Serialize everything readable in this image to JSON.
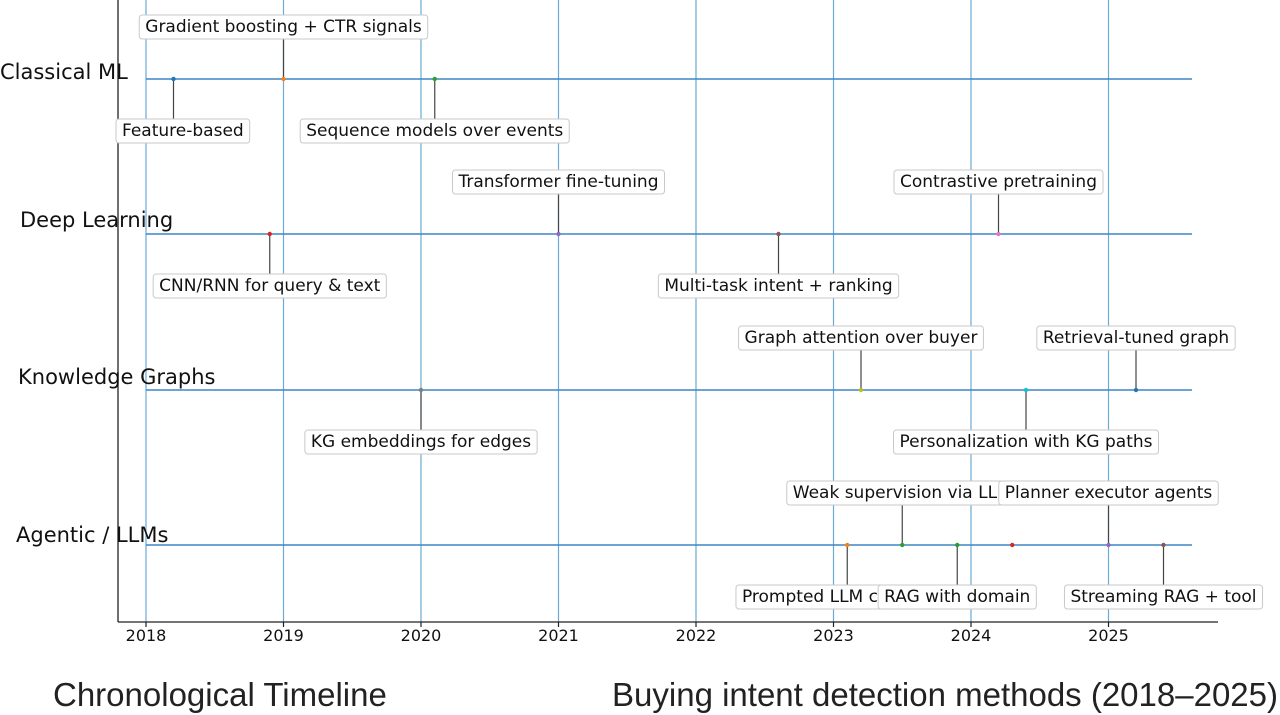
{
  "chart_data": {
    "type": "timeline",
    "x_range": [
      2017.8,
      2025.8
    ],
    "x_ticks": [
      2018,
      2019,
      2020,
      2021,
      2022,
      2023,
      2024,
      2025
    ],
    "x_tick_labels": [
      "2018",
      "2019",
      "2020",
      "2021",
      "2022",
      "2023",
      "2024",
      "2025"
    ],
    "lanes": [
      "Classical ML",
      "Deep Learning",
      "Knowledge Graphs",
      "Agentic / LLMs"
    ],
    "grid": true,
    "colors": {
      "grid": "#6aaad6",
      "lane_line": "#3d86c6",
      "axis": "#222222",
      "connector": "#444444"
    },
    "events": [
      {
        "lane": 0,
        "x": 2018.2,
        "label": "Feature-based",
        "side": "below",
        "marker_color": "#1f77b4"
      },
      {
        "lane": 0,
        "x": 2019.0,
        "label": "Gradient boosting + CTR signals",
        "side": "above",
        "marker_color": "#ff7f0e"
      },
      {
        "lane": 0,
        "x": 2020.1,
        "label": "Sequence models over events",
        "side": "below",
        "marker_color": "#2ca02c"
      },
      {
        "lane": 1,
        "x": 2018.9,
        "label": "CNN/RNN for query & text",
        "side": "below",
        "marker_color": "#d62728"
      },
      {
        "lane": 1,
        "x": 2021.0,
        "label": "Transformer fine-tuning",
        "side": "above",
        "marker_color": "#9467bd"
      },
      {
        "lane": 1,
        "x": 2022.6,
        "label": "Multi-task intent + ranking",
        "side": "below",
        "marker_color": "#8c564b"
      },
      {
        "lane": 1,
        "x": 2024.2,
        "label": "Contrastive pretraining",
        "side": "above",
        "marker_color": "#e377c2"
      },
      {
        "lane": 2,
        "x": 2020.0,
        "label": "KG embeddings for edges",
        "side": "below",
        "marker_color": "#7f7f7f"
      },
      {
        "lane": 2,
        "x": 2023.2,
        "label": "Graph attention over buyer",
        "side": "above",
        "marker_color": "#bcbd22"
      },
      {
        "lane": 2,
        "x": 2024.4,
        "label": "Personalization with KG paths",
        "side": "below",
        "marker_color": "#17becf"
      },
      {
        "lane": 2,
        "x": 2025.2,
        "label": "Retrieval-tuned graph",
        "side": "above",
        "marker_color": "#1f77b4"
      },
      {
        "lane": 3,
        "x": 2023.1,
        "label": "Prompted LLM classifiers",
        "side": "below",
        "marker_color": "#ff7f0e"
      },
      {
        "lane": 3,
        "x": 2023.5,
        "label": "Weak supervision via LLM",
        "side": "above",
        "marker_color": "#2ca02c"
      },
      {
        "lane": 3,
        "x": 2023.9,
        "label": "RAG with domain",
        "side": "below",
        "marker_color": "#2ca02c"
      },
      {
        "lane": 3,
        "x": 2024.3,
        "label": "RAG with domain",
        "side": "none",
        "marker_color": "#d62728"
      },
      {
        "lane": 3,
        "x": 2025.0,
        "label": "Planner executor agents",
        "side": "above",
        "marker_color": "#9467bd"
      },
      {
        "lane": 3,
        "x": 2025.4,
        "label": "Streaming RAG + tool",
        "side": "below",
        "marker_color": "#8c564b"
      }
    ]
  },
  "captions": {
    "left": "Chronological Timeline",
    "right": "Buying intent detection methods (2018–2025)"
  }
}
